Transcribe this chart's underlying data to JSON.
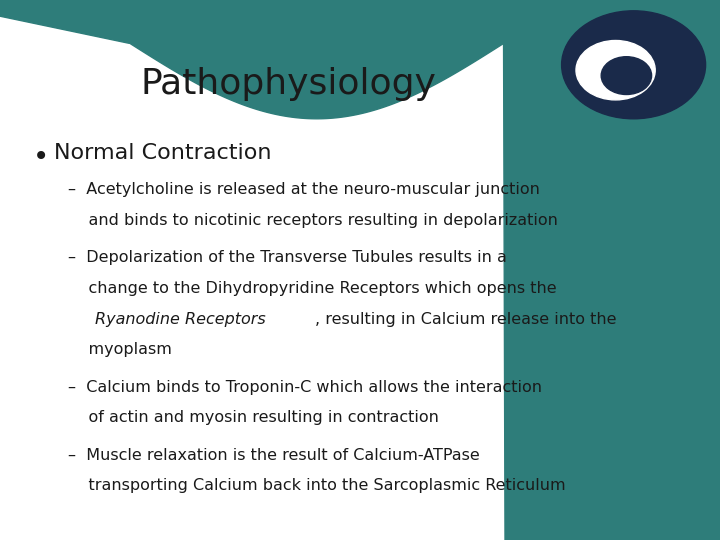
{
  "title": "Pathophysiology",
  "title_fontsize": 26,
  "title_color": "#1a1a1a",
  "background_color": "#ffffff",
  "header_teal": "#2e7d7a",
  "bullet_main": "Normal Contraction",
  "bullet_main_fontsize": 16,
  "sub_bullet_fontsize": 11.5,
  "text_color": "#1a1a1a",
  "sub_contents": [
    {
      "lines": [
        [
          {
            "text": "–  Acetylcholine is released at the neuro-muscular junction",
            "style": "normal"
          }
        ],
        [
          {
            "text": "    and binds to nicotinic receptors resulting in depolarization",
            "style": "normal"
          }
        ]
      ]
    },
    {
      "lines": [
        [
          {
            "text": "–  Depolarization of the Transverse Tubules results in a",
            "style": "normal"
          }
        ],
        [
          {
            "text": "    change to the Dihydropyridine Receptors which opens the",
            "style": "normal"
          }
        ],
        [
          {
            "text": "    ",
            "style": "normal"
          },
          {
            "text": "Ryanodine Receptors",
            "style": "italic"
          },
          {
            "text": ", resulting in Calcium release into the",
            "style": "normal"
          }
        ],
        [
          {
            "text": "    myoplasm",
            "style": "normal"
          }
        ]
      ]
    },
    {
      "lines": [
        [
          {
            "text": "–  Calcium binds to Troponin-C which allows the interaction",
            "style": "normal"
          }
        ],
        [
          {
            "text": "    of actin and myosin resulting in contraction",
            "style": "normal"
          }
        ]
      ]
    },
    {
      "lines": [
        [
          {
            "text": "–  Muscle relaxation is the result of Calcium-ATPase",
            "style": "normal"
          }
        ],
        [
          {
            "text": "    transporting Calcium back into the Sarcoplasmic Reticulum",
            "style": "normal"
          }
        ]
      ]
    }
  ]
}
